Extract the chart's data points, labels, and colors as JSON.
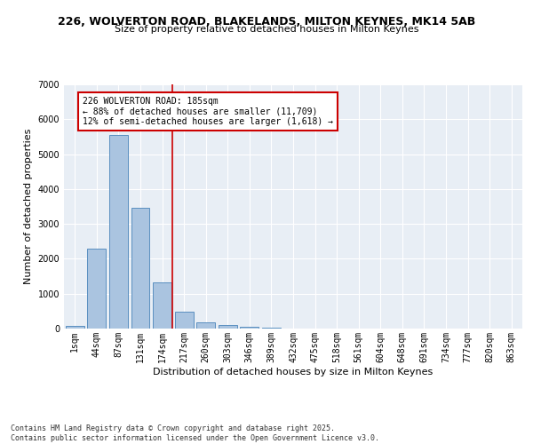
{
  "title_line1": "226, WOLVERTON ROAD, BLAKELANDS, MILTON KEYNES, MK14 5AB",
  "title_line2": "Size of property relative to detached houses in Milton Keynes",
  "xlabel": "Distribution of detached houses by size in Milton Keynes",
  "ylabel": "Number of detached properties",
  "categories": [
    "1sqm",
    "44sqm",
    "87sqm",
    "131sqm",
    "174sqm",
    "217sqm",
    "260sqm",
    "303sqm",
    "346sqm",
    "389sqm",
    "432sqm",
    "475sqm",
    "518sqm",
    "561sqm",
    "604sqm",
    "648sqm",
    "691sqm",
    "734sqm",
    "777sqm",
    "820sqm",
    "863sqm"
  ],
  "values": [
    75,
    2300,
    5550,
    3450,
    1330,
    480,
    175,
    90,
    45,
    15,
    5,
    3,
    2,
    1,
    1,
    0,
    0,
    0,
    0,
    0,
    0
  ],
  "bar_color": "#aac4e0",
  "bar_edge_color": "#5a8fc0",
  "background_color": "#e8eef5",
  "grid_color": "#ffffff",
  "vline_color": "#cc0000",
  "vline_pos": 4.45,
  "annotation_text": "226 WOLVERTON ROAD: 185sqm\n← 88% of detached houses are smaller (11,709)\n12% of semi-detached houses are larger (1,618) →",
  "annotation_box_color": "#cc0000",
  "ylim": [
    0,
    7000
  ],
  "yticks": [
    0,
    1000,
    2000,
    3000,
    4000,
    5000,
    6000,
    7000
  ],
  "footnote": "Contains HM Land Registry data © Crown copyright and database right 2025.\nContains public sector information licensed under the Open Government Licence v3.0.",
  "title_fontsize": 9,
  "subtitle_fontsize": 8,
  "axis_label_fontsize": 8,
  "tick_fontsize": 7,
  "annotation_fontsize": 7,
  "footnote_fontsize": 6
}
